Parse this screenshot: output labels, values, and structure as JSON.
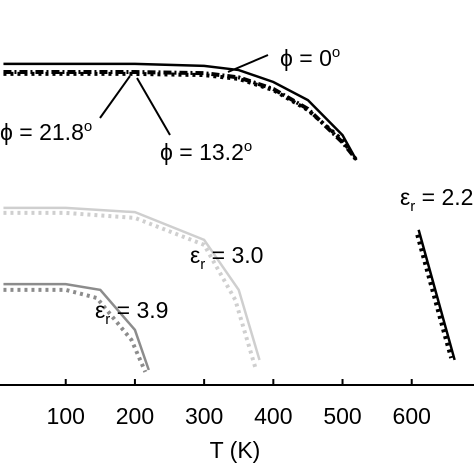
{
  "chart_data": {
    "type": "line",
    "xlabel": "T (K)",
    "xlim": [
      5,
      690
    ],
    "ylim": [
      0,
      100
    ],
    "xticks": [
      100,
      200,
      300,
      400,
      500,
      600
    ],
    "series": [
      {
        "color": "#000000",
        "dash": "solid",
        "x": [
          10,
          100,
          200,
          300,
          350,
          400,
          450,
          500,
          520
        ],
        "values": [
          83.4,
          83.4,
          83.4,
          82.9,
          81.8,
          78.7,
          74.0,
          64.9,
          58.4
        ]
      },
      {
        "color": "#000000",
        "dash": "dot",
        "x": [
          10,
          100,
          200,
          300,
          350,
          400,
          450,
          500,
          520
        ],
        "values": [
          80.8,
          80.8,
          80.8,
          80.5,
          79.5,
          76.6,
          71.4,
          63.6,
          58.4
        ]
      },
      {
        "color": "#000000",
        "dash": "dashdot",
        "x": [
          10,
          100,
          200,
          300,
          350,
          400,
          450,
          500,
          515
        ],
        "values": [
          81.3,
          81.3,
          81.3,
          81.0,
          79.9,
          76.9,
          71.7,
          63.0,
          59.7
        ]
      },
      {
        "color": "#cfcfcf",
        "dash": "solid",
        "x": [
          10,
          100,
          200,
          300,
          350,
          380
        ],
        "values": [
          46.0,
          46.0,
          44.9,
          37.7,
          24.7,
          6.5
        ]
      },
      {
        "color": "#cfcfcf",
        "dash": "dot",
        "x": [
          10,
          100,
          200,
          300,
          345,
          375
        ],
        "values": [
          44.7,
          44.7,
          43.4,
          36.4,
          22.1,
          3.9
        ]
      },
      {
        "color": "#8c8c8c",
        "dash": "solid",
        "x": [
          10,
          100,
          150,
          200,
          220
        ],
        "values": [
          26.2,
          26.2,
          24.7,
          14.3,
          3.9
        ]
      },
      {
        "color": "#8c8c8c",
        "dash": "dot",
        "x": [
          10,
          100,
          145,
          195,
          215
        ],
        "values": [
          24.7,
          24.7,
          22.6,
          11.7,
          3.4
        ]
      },
      {
        "color": "#000000",
        "dash": "solid",
        "x": [
          610,
          630,
          650,
          662
        ],
        "values": [
          40.3,
          27.3,
          14.3,
          6.5
        ]
      },
      {
        "color": "#000000",
        "dash": "dot",
        "x": [
          608,
          627,
          646,
          657
        ],
        "values": [
          39.0,
          26.5,
          14.0,
          7.0
        ]
      }
    ],
    "annotations": [
      {
        "main": "ϕ = 0",
        "sup": "o"
      },
      {
        "main": "ϕ = 21.8",
        "sup": "o"
      },
      {
        "main": "ϕ = 13.2",
        "sup": "o"
      },
      {
        "main": "ε",
        "sub": "r",
        "rest": " = 2.2"
      },
      {
        "main": "ε",
        "sub": "r",
        "rest": " = 3.0"
      },
      {
        "main": "ε",
        "sub": "r",
        "rest": " = 3.9"
      }
    ]
  }
}
